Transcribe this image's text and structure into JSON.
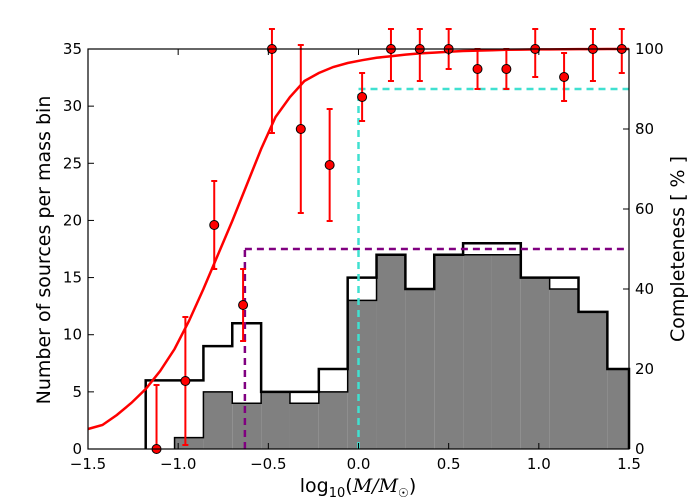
{
  "chart_data": {
    "type": "bar",
    "xlabel": "log10(M/M☉)",
    "xlabel_parts": {
      "prefix": "log",
      "sub": "10",
      "open": "(",
      "m": "M",
      "slash": "/",
      "msun": "M",
      "sun": "☉",
      "close": ")"
    },
    "ylabel": "Number of sources per mass bin",
    "y2label": "Completeness [ % ]",
    "xlim": [
      -1.5,
      1.5
    ],
    "ylim": [
      0,
      35
    ],
    "y2lim": [
      0,
      100
    ],
    "x_ticks": [
      -1.5,
      -1.0,
      -0.5,
      0.0,
      0.5,
      1.0,
      1.5
    ],
    "x_tick_labels": [
      "−1.5",
      "−1.0",
      "−0.5",
      "0.0",
      "0.5",
      "1.0",
      "1.5"
    ],
    "y_ticks": [
      0,
      5,
      10,
      15,
      20,
      25,
      30,
      35
    ],
    "y_tick_labels": [
      "0",
      "5",
      "10",
      "15",
      "20",
      "25",
      "30",
      "35"
    ],
    "y2_ticks": [
      0,
      20,
      40,
      60,
      80,
      100
    ],
    "y2_tick_labels": [
      "0",
      "20",
      "40",
      "60",
      "80",
      "100"
    ],
    "bin_edges": [
      -1.5,
      -1.34,
      -1.18,
      -1.02,
      -0.86,
      -0.7,
      -0.54,
      -0.38,
      -0.22,
      -0.06,
      0.1,
      0.26,
      0.42,
      0.58,
      0.74,
      0.9,
      1.06,
      1.22,
      1.38,
      1.5
    ],
    "series": [
      {
        "name": "",
        "style": "step",
        "color": "#000000",
        "values": [
          0,
          0,
          6,
          6,
          9,
          11,
          5,
          5,
          7,
          15,
          17,
          14,
          17,
          18,
          18,
          15,
          15,
          12,
          7
        ]
      },
      {
        "name": "",
        "style": "filled",
        "color": "#808080",
        "values": [
          0,
          0,
          0,
          1,
          5,
          4,
          5,
          4,
          5,
          13,
          17,
          14,
          17,
          17,
          17,
          15,
          14,
          12,
          7
        ]
      }
    ],
    "completeness_curve": {
      "color": "#ff0000",
      "x": [
        -1.5,
        -1.42,
        -1.34,
        -1.26,
        -1.18,
        -1.1,
        -1.02,
        -0.94,
        -0.86,
        -0.78,
        -0.7,
        -0.62,
        -0.54,
        -0.46,
        -0.38,
        -0.3,
        -0.22,
        -0.14,
        -0.06,
        0.02,
        0.1,
        0.18,
        0.26,
        0.34,
        0.42,
        0.5,
        0.58,
        0.66,
        0.74,
        0.82,
        0.9,
        0.98,
        1.06,
        1.14,
        1.22,
        1.3,
        1.38,
        1.46,
        1.5
      ],
      "y": [
        5,
        6,
        8.5,
        11.5,
        15,
        19.5,
        25,
        32,
        40,
        48.5,
        57,
        66,
        75,
        83,
        88,
        92,
        94,
        95.5,
        96.5,
        97.2,
        97.8,
        98.2,
        98.6,
        98.9,
        99.1,
        99.3,
        99.5,
        99.6,
        99.7,
        99.8,
        99.85,
        99.9,
        99.92,
        99.95,
        99.97,
        99.98,
        99.99,
        100,
        100
      ]
    },
    "completeness_points": {
      "color": "#ff0000",
      "x": [
        -1.12,
        -0.96,
        -0.8,
        -0.64,
        -0.48,
        -0.32,
        -0.16,
        0.02,
        0.18,
        0.34,
        0.5,
        0.66,
        0.82,
        0.98,
        1.14,
        1.3,
        1.46
      ],
      "y": [
        0,
        17,
        56,
        36,
        100,
        80,
        71,
        88,
        100,
        100,
        100,
        95,
        95,
        100,
        93,
        100,
        100
      ],
      "err": [
        16,
        16,
        11,
        9,
        21,
        21,
        14,
        6,
        8,
        8,
        5,
        5,
        5,
        7,
        6,
        8,
        6
      ]
    },
    "thresholds": [
      {
        "color": "#800080",
        "x": -0.63,
        "y2": 50
      },
      {
        "color": "#40e0d0",
        "x": 0.0,
        "y2": 90
      }
    ],
    "grid": false
  }
}
